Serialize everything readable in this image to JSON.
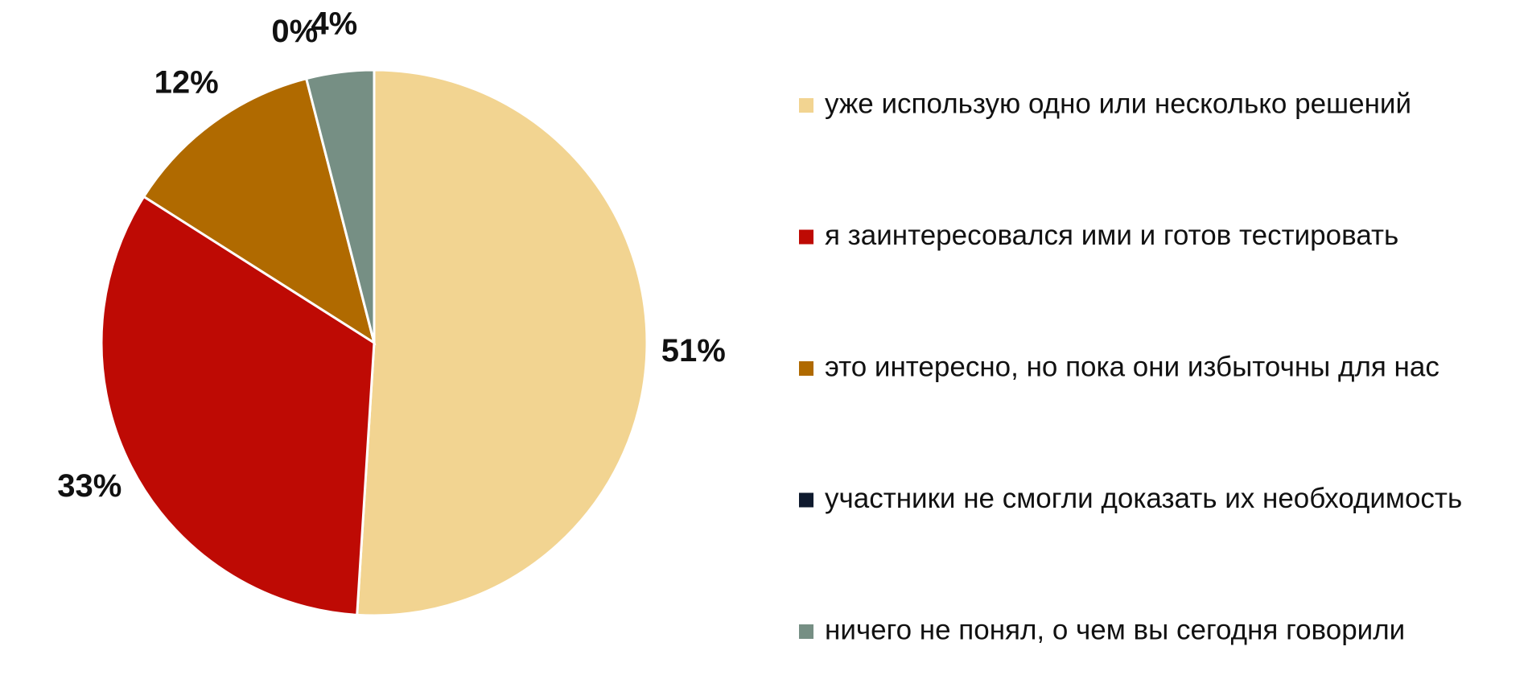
{
  "chart_data": {
    "type": "pie",
    "categories": [
      "уже использую одно или несколько решений",
      "я заинтересовался ими и готов тестировать",
      "это интересно, но пока они избыточны для нас",
      "участники не смогли доказать их необходимость",
      "ничего не понял, о чем вы сегодня говорили"
    ],
    "values": [
      51,
      33,
      12,
      0,
      4
    ],
    "value_labels": [
      "51%",
      "33%",
      "12%",
      "0%",
      "4%"
    ],
    "colors": [
      "#f2d491",
      "#be0a04",
      "#b06a00",
      "#0f1a2e",
      "#768f84"
    ],
    "legend": "right"
  }
}
